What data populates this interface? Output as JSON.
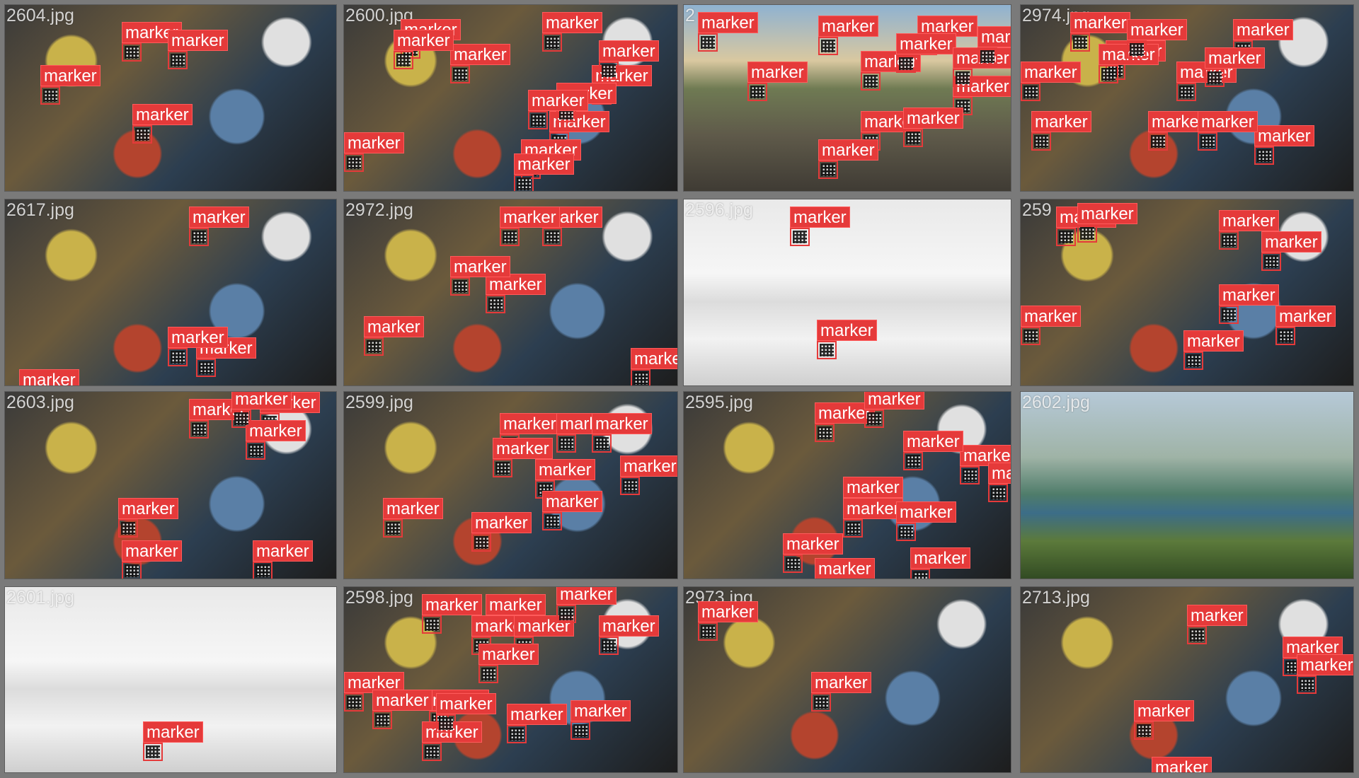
{
  "label_text": "marker",
  "colors": {
    "label_bg": "#e53a3a",
    "label_text": "#ffffff",
    "box_stroke": "#e53a3a",
    "grid_bg": "#7a7a7a",
    "filename_text": "#ffffff"
  },
  "grid": {
    "columns": 4,
    "rows": 4
  },
  "tiles": [
    {
      "filename": "2604.jpg",
      "scene": "cluttered-collage",
      "marker_count": 4
    },
    {
      "filename": "2600.jpg",
      "scene": "cluttered-collage",
      "marker_count": 12
    },
    {
      "filename": "2",
      "scene": "mountain-landscape",
      "marker_count": 12
    },
    {
      "filename": "2974.jpg",
      "scene": "cluttered-collage",
      "marker_count": 12
    },
    {
      "filename": "2617.jpg",
      "scene": "cluttered-collage",
      "marker_count": 4
    },
    {
      "filename": "2972.jpg",
      "scene": "cluttered-collage",
      "marker_count": 6
    },
    {
      "filename": "2596.jpg",
      "scene": "office-shelf",
      "marker_count": 2
    },
    {
      "filename": "259",
      "scene": "cluttered-collage",
      "marker_count": 8
    },
    {
      "filename": "2603.jpg",
      "scene": "cluttered-collage",
      "marker_count": 7
    },
    {
      "filename": "2599.jpg",
      "scene": "cluttered-collage",
      "marker_count": 9
    },
    {
      "filename": "2595.jpg",
      "scene": "cluttered-collage",
      "marker_count": 11
    },
    {
      "filename": "2602.jpg",
      "scene": "lake-landscape",
      "marker_count": 0
    },
    {
      "filename": "2601.jpg",
      "scene": "office-shelf",
      "marker_count": 1
    },
    {
      "filename": "2598.jpg",
      "scene": "cluttered-collage",
      "marker_count": 14
    },
    {
      "filename": "2973.jpg",
      "scene": "cluttered-collage",
      "marker_count": 2
    },
    {
      "filename": "2713.jpg",
      "scene": "cluttered-collage",
      "marker_count": 5
    }
  ]
}
